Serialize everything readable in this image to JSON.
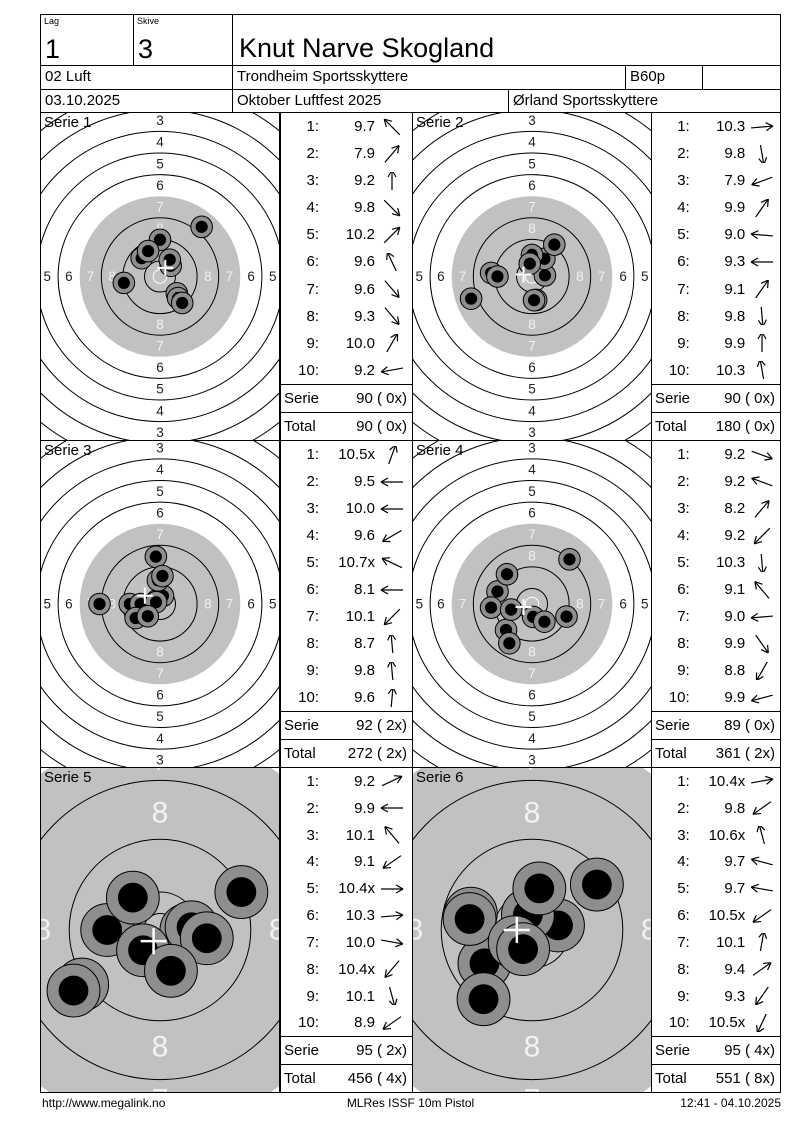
{
  "header": {
    "lag_label": "Lag",
    "lag_value": "1",
    "skive_label": "Skive",
    "skive_value": "3",
    "shooter_name": "Knut Narve Skogland",
    "discipline": "02 Luft",
    "club": "Trondheim Sportsskyttere",
    "class": "B60p",
    "date": "03.10.2025",
    "event": "Oktober Luftfest 2025",
    "arena": "Ørland Sportsskyttere"
  },
  "labels": {
    "serie": "Serie",
    "total": "Total"
  },
  "target": {
    "small_vertical_labels": [
      "8",
      "7",
      "6",
      "5",
      "4",
      "3"
    ],
    "small_horizontal_labels": [
      "8",
      "7",
      "6",
      "5"
    ],
    "zoomed_labels": [
      "8",
      "7"
    ]
  },
  "colors": {
    "paper": "#ffffff",
    "ink": "#000000",
    "target_gray": "#c1c1c1",
    "shot_halo": "#8e8e8e",
    "shot_core": "#000000",
    "ring_label_light": "#f2f2f2",
    "ring_label_dark": "#222222",
    "mpi_cross": "#ffffff"
  },
  "series": [
    {
      "label": "Serie 1",
      "zoomed": false,
      "serie_sum": "90 ( 0x)",
      "total_sum": "90 ( 0x)",
      "shots": [
        {
          "n": "1:",
          "value": "9.7",
          "dir": 135
        },
        {
          "n": "2:",
          "value": "7.9",
          "dir": 50
        },
        {
          "n": "3:",
          "value": "9.2",
          "dir": 90
        },
        {
          "n": "4:",
          "value": "9.8",
          "dir": -45
        },
        {
          "n": "5:",
          "value": "10.2",
          "dir": 45
        },
        {
          "n": "6:",
          "value": "9.6",
          "dir": 115
        },
        {
          "n": "7:",
          "value": "9.6",
          "dir": -50
        },
        {
          "n": "8:",
          "value": "9.3",
          "dir": -50
        },
        {
          "n": "9:",
          "value": "10.0",
          "dir": 60
        },
        {
          "n": "10:",
          "value": "9.2",
          "dir": 190
        }
      ]
    },
    {
      "label": "Serie 2",
      "zoomed": false,
      "serie_sum": "90 ( 0x)",
      "total_sum": "180 ( 0x)",
      "shots": [
        {
          "n": "1:",
          "value": "10.3",
          "dir": 5
        },
        {
          "n": "2:",
          "value": "9.8",
          "dir": -80
        },
        {
          "n": "3:",
          "value": "7.9",
          "dir": 200
        },
        {
          "n": "4:",
          "value": "9.9",
          "dir": 55
        },
        {
          "n": "5:",
          "value": "9.0",
          "dir": 175
        },
        {
          "n": "6:",
          "value": "9.3",
          "dir": 180
        },
        {
          "n": "7:",
          "value": "9.1",
          "dir": 55
        },
        {
          "n": "8:",
          "value": "9.8",
          "dir": -85
        },
        {
          "n": "9:",
          "value": "9.9",
          "dir": 90
        },
        {
          "n": "10:",
          "value": "10.3",
          "dir": 100
        }
      ]
    },
    {
      "label": "Serie 3",
      "zoomed": false,
      "serie_sum": "92 ( 2x)",
      "total_sum": "272 ( 2x)",
      "shots": [
        {
          "n": "1:",
          "value": "10.5x",
          "dir": 70
        },
        {
          "n": "2:",
          "value": "9.5",
          "dir": 180
        },
        {
          "n": "3:",
          "value": "10.0",
          "dir": 180
        },
        {
          "n": "4:",
          "value": "9.6",
          "dir": 210
        },
        {
          "n": "5:",
          "value": "10.7x",
          "dir": 155
        },
        {
          "n": "6:",
          "value": "8.1",
          "dir": 180
        },
        {
          "n": "7:",
          "value": "10.1",
          "dir": 225
        },
        {
          "n": "8:",
          "value": "8.7",
          "dir": 95
        },
        {
          "n": "9:",
          "value": "9.8",
          "dir": 95
        },
        {
          "n": "10:",
          "value": "9.6",
          "dir": 85
        }
      ]
    },
    {
      "label": "Serie 4",
      "zoomed": false,
      "serie_sum": "89 ( 0x)",
      "total_sum": "361 ( 2x)",
      "shots": [
        {
          "n": "1:",
          "value": "9.2",
          "dir": -20
        },
        {
          "n": "2:",
          "value": "9.2",
          "dir": 160
        },
        {
          "n": "3:",
          "value": "8.2",
          "dir": 50
        },
        {
          "n": "4:",
          "value": "9.2",
          "dir": 225
        },
        {
          "n": "5:",
          "value": "10.3",
          "dir": -85
        },
        {
          "n": "6:",
          "value": "9.1",
          "dir": 130
        },
        {
          "n": "7:",
          "value": "9.0",
          "dir": 185
        },
        {
          "n": "8:",
          "value": "9.9",
          "dir": -55
        },
        {
          "n": "9:",
          "value": "8.8",
          "dir": 240
        },
        {
          "n": "10:",
          "value": "9.9",
          "dir": 195
        }
      ]
    },
    {
      "label": "Serie 5",
      "zoomed": true,
      "serie_sum": "95 ( 2x)",
      "total_sum": "456 ( 4x)",
      "shots": [
        {
          "n": "1:",
          "value": "9.2",
          "dir": 25
        },
        {
          "n": "2:",
          "value": "9.9",
          "dir": 180
        },
        {
          "n": "3:",
          "value": "10.1",
          "dir": 130
        },
        {
          "n": "4:",
          "value": "9.1",
          "dir": 215
        },
        {
          "n": "5:",
          "value": "10.4x",
          "dir": 0
        },
        {
          "n": "6:",
          "value": "10.3",
          "dir": 5
        },
        {
          "n": "7:",
          "value": "10.0",
          "dir": -10
        },
        {
          "n": "8:",
          "value": "10.4x",
          "dir": 230
        },
        {
          "n": "9:",
          "value": "10.1",
          "dir": -75
        },
        {
          "n": "10:",
          "value": "8.9",
          "dir": 215
        }
      ]
    },
    {
      "label": "Serie 6",
      "zoomed": true,
      "serie_sum": "95 ( 4x)",
      "total_sum": "551 ( 8x)",
      "shots": [
        {
          "n": "1:",
          "value": "10.4x",
          "dir": 10
        },
        {
          "n": "2:",
          "value": "9.8",
          "dir": 215
        },
        {
          "n": "3:",
          "value": "10.6x",
          "dir": 105
        },
        {
          "n": "4:",
          "value": "9.7",
          "dir": 165
        },
        {
          "n": "5:",
          "value": "9.7",
          "dir": 170
        },
        {
          "n": "6:",
          "value": "10.5x",
          "dir": 215
        },
        {
          "n": "7:",
          "value": "10.1",
          "dir": 80
        },
        {
          "n": "8:",
          "value": "9.4",
          "dir": 35
        },
        {
          "n": "9:",
          "value": "9.3",
          "dir": 235
        },
        {
          "n": "10:",
          "value": "10.5x",
          "dir": 245
        }
      ]
    }
  ],
  "footer": {
    "url": "http://www.megalink.no",
    "program": "MLRes ISSF 10m Pistol",
    "timestamp": "12:41 - 04.10.2025"
  }
}
